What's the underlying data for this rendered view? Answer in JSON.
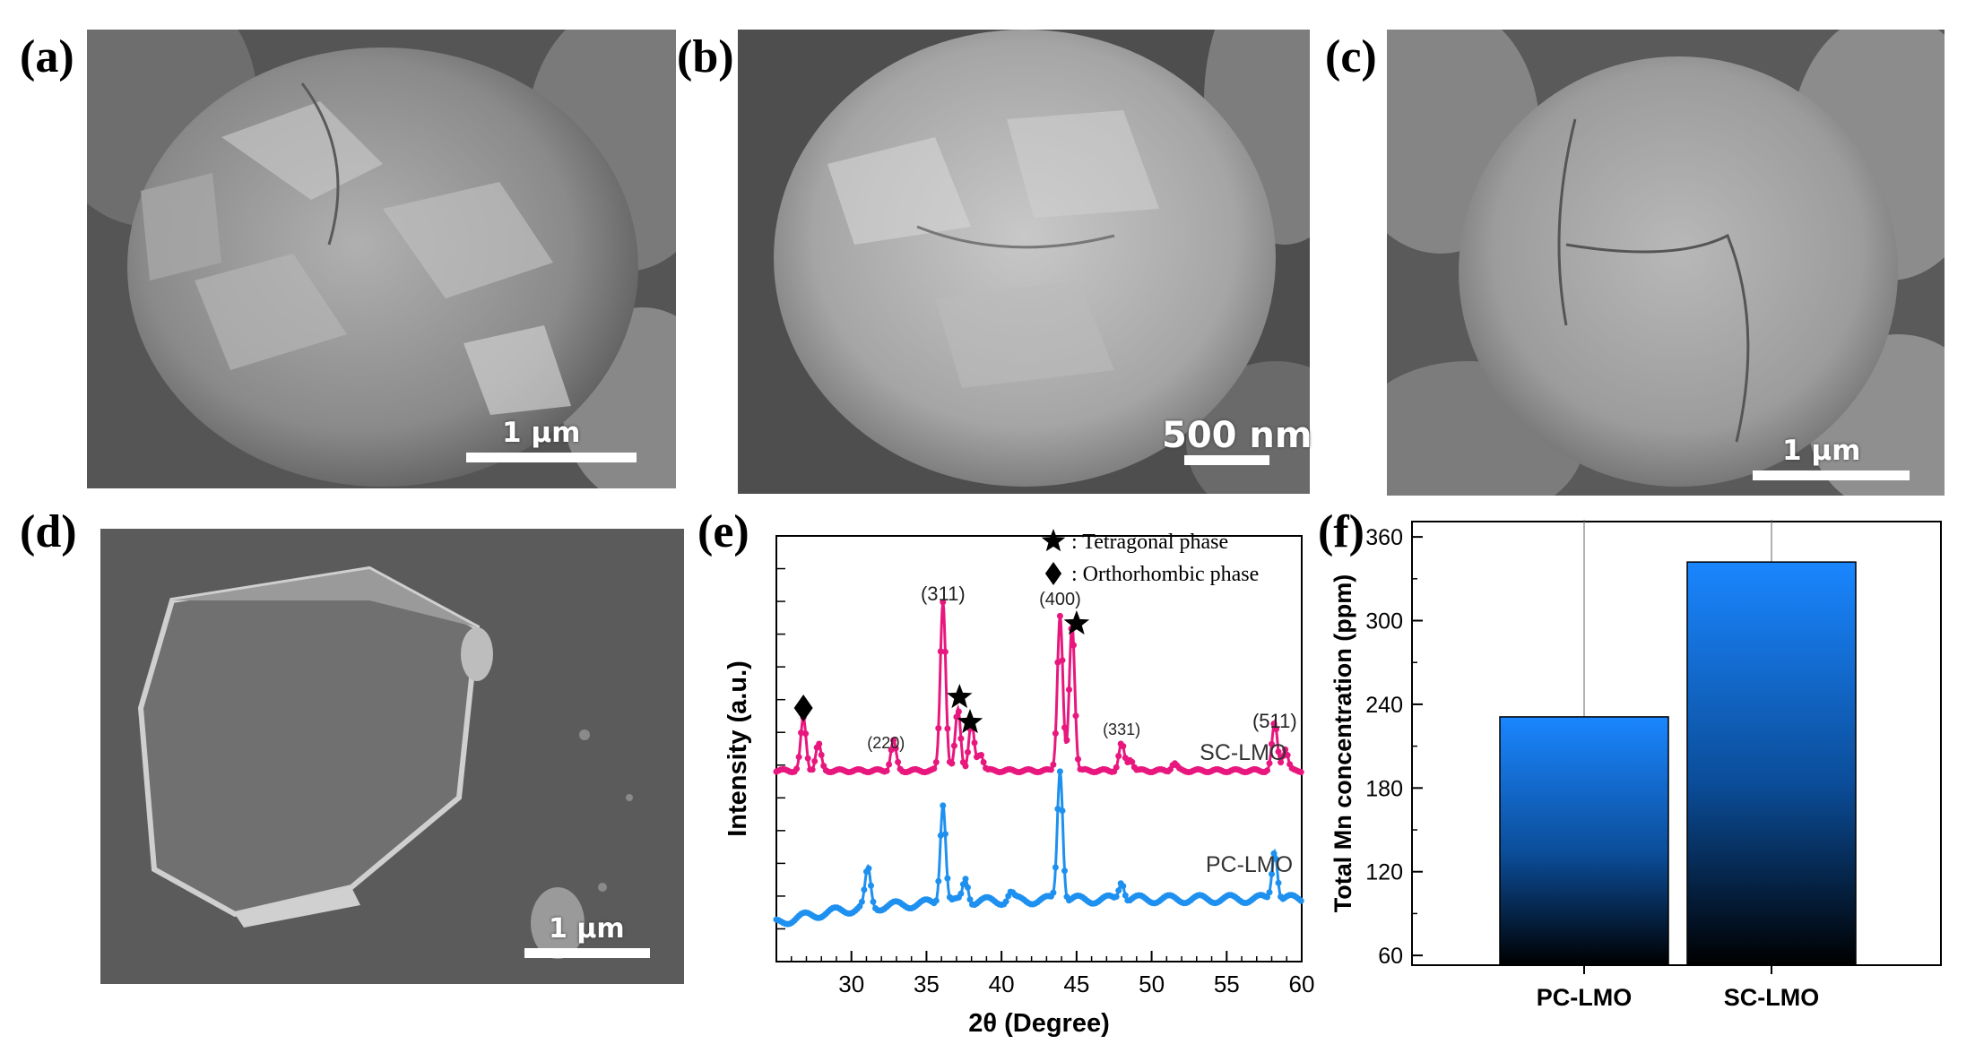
{
  "panels": {
    "a": {
      "label": "(a)",
      "scale": "1 μm"
    },
    "b": {
      "label": "(b)",
      "scale": "500 nm"
    },
    "c": {
      "label": "(c)",
      "scale": "1 μm"
    },
    "d": {
      "label": "(d)",
      "scale": "1 μm"
    },
    "e": {
      "label": "(e)"
    },
    "f": {
      "label": "(f)"
    }
  },
  "colors": {
    "sc_lmo": "#e8177e",
    "pc_lmo": "#1e90ef",
    "bar_top": "#1a86ff",
    "bar_bottom": "#000000"
  },
  "icons": {
    "tetragonal": "star-icon",
    "orthorhombic": "diamond-icon"
  },
  "chart_data": [
    {
      "type": "line",
      "xlabel": "2θ (Degree)",
      "ylabel": "Intensity (a.u.)",
      "xlim": [
        25,
        60
      ],
      "xticks": [
        30,
        35,
        40,
        45,
        50,
        55,
        60
      ],
      "legend": [
        {
          "symbol": "star-icon",
          "text": ": Tetragonal phase"
        },
        {
          "symbol": "diamond-icon",
          "text": ": Orthorhombic phase"
        }
      ],
      "series": [
        {
          "name": "SC-LMO",
          "color": "#e8177e",
          "offset": 1.0,
          "peaks": [
            [
              26.8,
              0.35
            ],
            [
              27.8,
              0.18
            ],
            [
              32.8,
              0.2
            ],
            [
              36.1,
              1.15
            ],
            [
              37.1,
              0.42
            ],
            [
              38.0,
              0.32
            ],
            [
              38.6,
              0.12
            ],
            [
              43.9,
              1.05
            ],
            [
              44.7,
              1.0
            ],
            [
              48.0,
              0.18
            ],
            [
              48.6,
              0.08
            ],
            [
              51.5,
              0.05
            ],
            [
              58.2,
              0.32
            ],
            [
              58.9,
              0.15
            ]
          ]
        },
        {
          "name": "PC-LMO",
          "color": "#1e90ef",
          "offset": 0.0,
          "peaks": [
            [
              31.1,
              0.28
            ],
            [
              36.1,
              0.75
            ],
            [
              37.6,
              0.18
            ],
            [
              40.6,
              0.06
            ],
            [
              43.9,
              0.98
            ],
            [
              48.0,
              0.15
            ],
            [
              58.2,
              0.38
            ]
          ]
        }
      ],
      "peak_labels": [
        {
          "text": "(220)",
          "x": 32.3
        },
        {
          "text": "(311)",
          "x": 36.1
        },
        {
          "text": "(400)",
          "x": 43.9
        },
        {
          "text": "(331)",
          "x": 48.0
        },
        {
          "text": "(511)",
          "x": 58.2
        }
      ],
      "markers": [
        {
          "symbol": "diamond-icon",
          "x": 26.8
        },
        {
          "symbol": "star-icon",
          "x": 37.2
        },
        {
          "symbol": "star-icon",
          "x": 37.9
        },
        {
          "symbol": "star-icon",
          "x": 45.0
        }
      ]
    },
    {
      "type": "bar",
      "categories": [
        "PC-LMO",
        "SC-LMO"
      ],
      "values": [
        231,
        342
      ],
      "error_upper": [
        382,
        383
      ],
      "ylabel": "Total Mn concentration (ppm)",
      "ylim": [
        53,
        371
      ],
      "yticks": [
        60,
        120,
        180,
        240,
        300,
        360
      ]
    }
  ]
}
